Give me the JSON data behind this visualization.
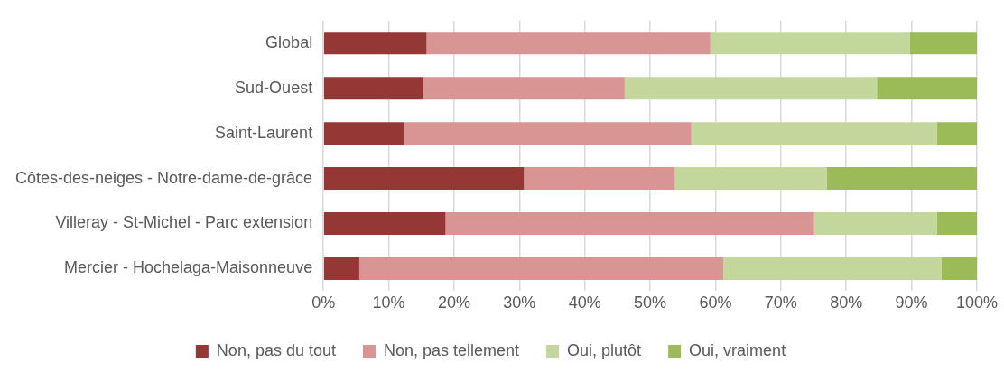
{
  "chart_data": {
    "type": "bar",
    "orientation": "horizontal",
    "stacked": true,
    "categories": [
      "Global",
      "Sud-Ouest",
      "Saint-Laurent",
      "Côtes-des-neiges - Notre-dame-de-grâce",
      "Villeray - St-Michel - Parc extension",
      "Mercier - Hochelaga-Maisonneuve"
    ],
    "series": [
      {
        "name": "Non, pas du tout",
        "color": "#953735",
        "values": [
          15.8,
          15.3,
          12.4,
          30.7,
          18.7,
          5.5
        ]
      },
      {
        "name": "Non, pas tellement",
        "color": "#d99594",
        "values": [
          43.4,
          30.8,
          43.9,
          23.1,
          56.4,
          55.7
        ]
      },
      {
        "name": "Oui, plutôt",
        "color": "#c3d69b",
        "values": [
          30.5,
          38.6,
          37.6,
          23.2,
          18.8,
          33.4
        ]
      },
      {
        "name": "Oui, vraiment",
        "color": "#9bbb59",
        "values": [
          10.3,
          15.3,
          6.1,
          23.0,
          6.1,
          5.4
        ]
      }
    ],
    "xlim": [
      0,
      100
    ],
    "xticks": [
      {
        "value": 0,
        "label": "0%"
      },
      {
        "value": 10,
        "label": "10%"
      },
      {
        "value": 20,
        "label": "20%"
      },
      {
        "value": 30,
        "label": "30%"
      },
      {
        "value": 40,
        "label": "40%"
      },
      {
        "value": 50,
        "label": "50%"
      },
      {
        "value": 60,
        "label": "60%"
      },
      {
        "value": 70,
        "label": "70%"
      },
      {
        "value": 80,
        "label": "80%"
      },
      {
        "value": 90,
        "label": "90%"
      },
      {
        "value": 100,
        "label": "100%"
      }
    ],
    "grid": "x",
    "legend": "bottom"
  }
}
